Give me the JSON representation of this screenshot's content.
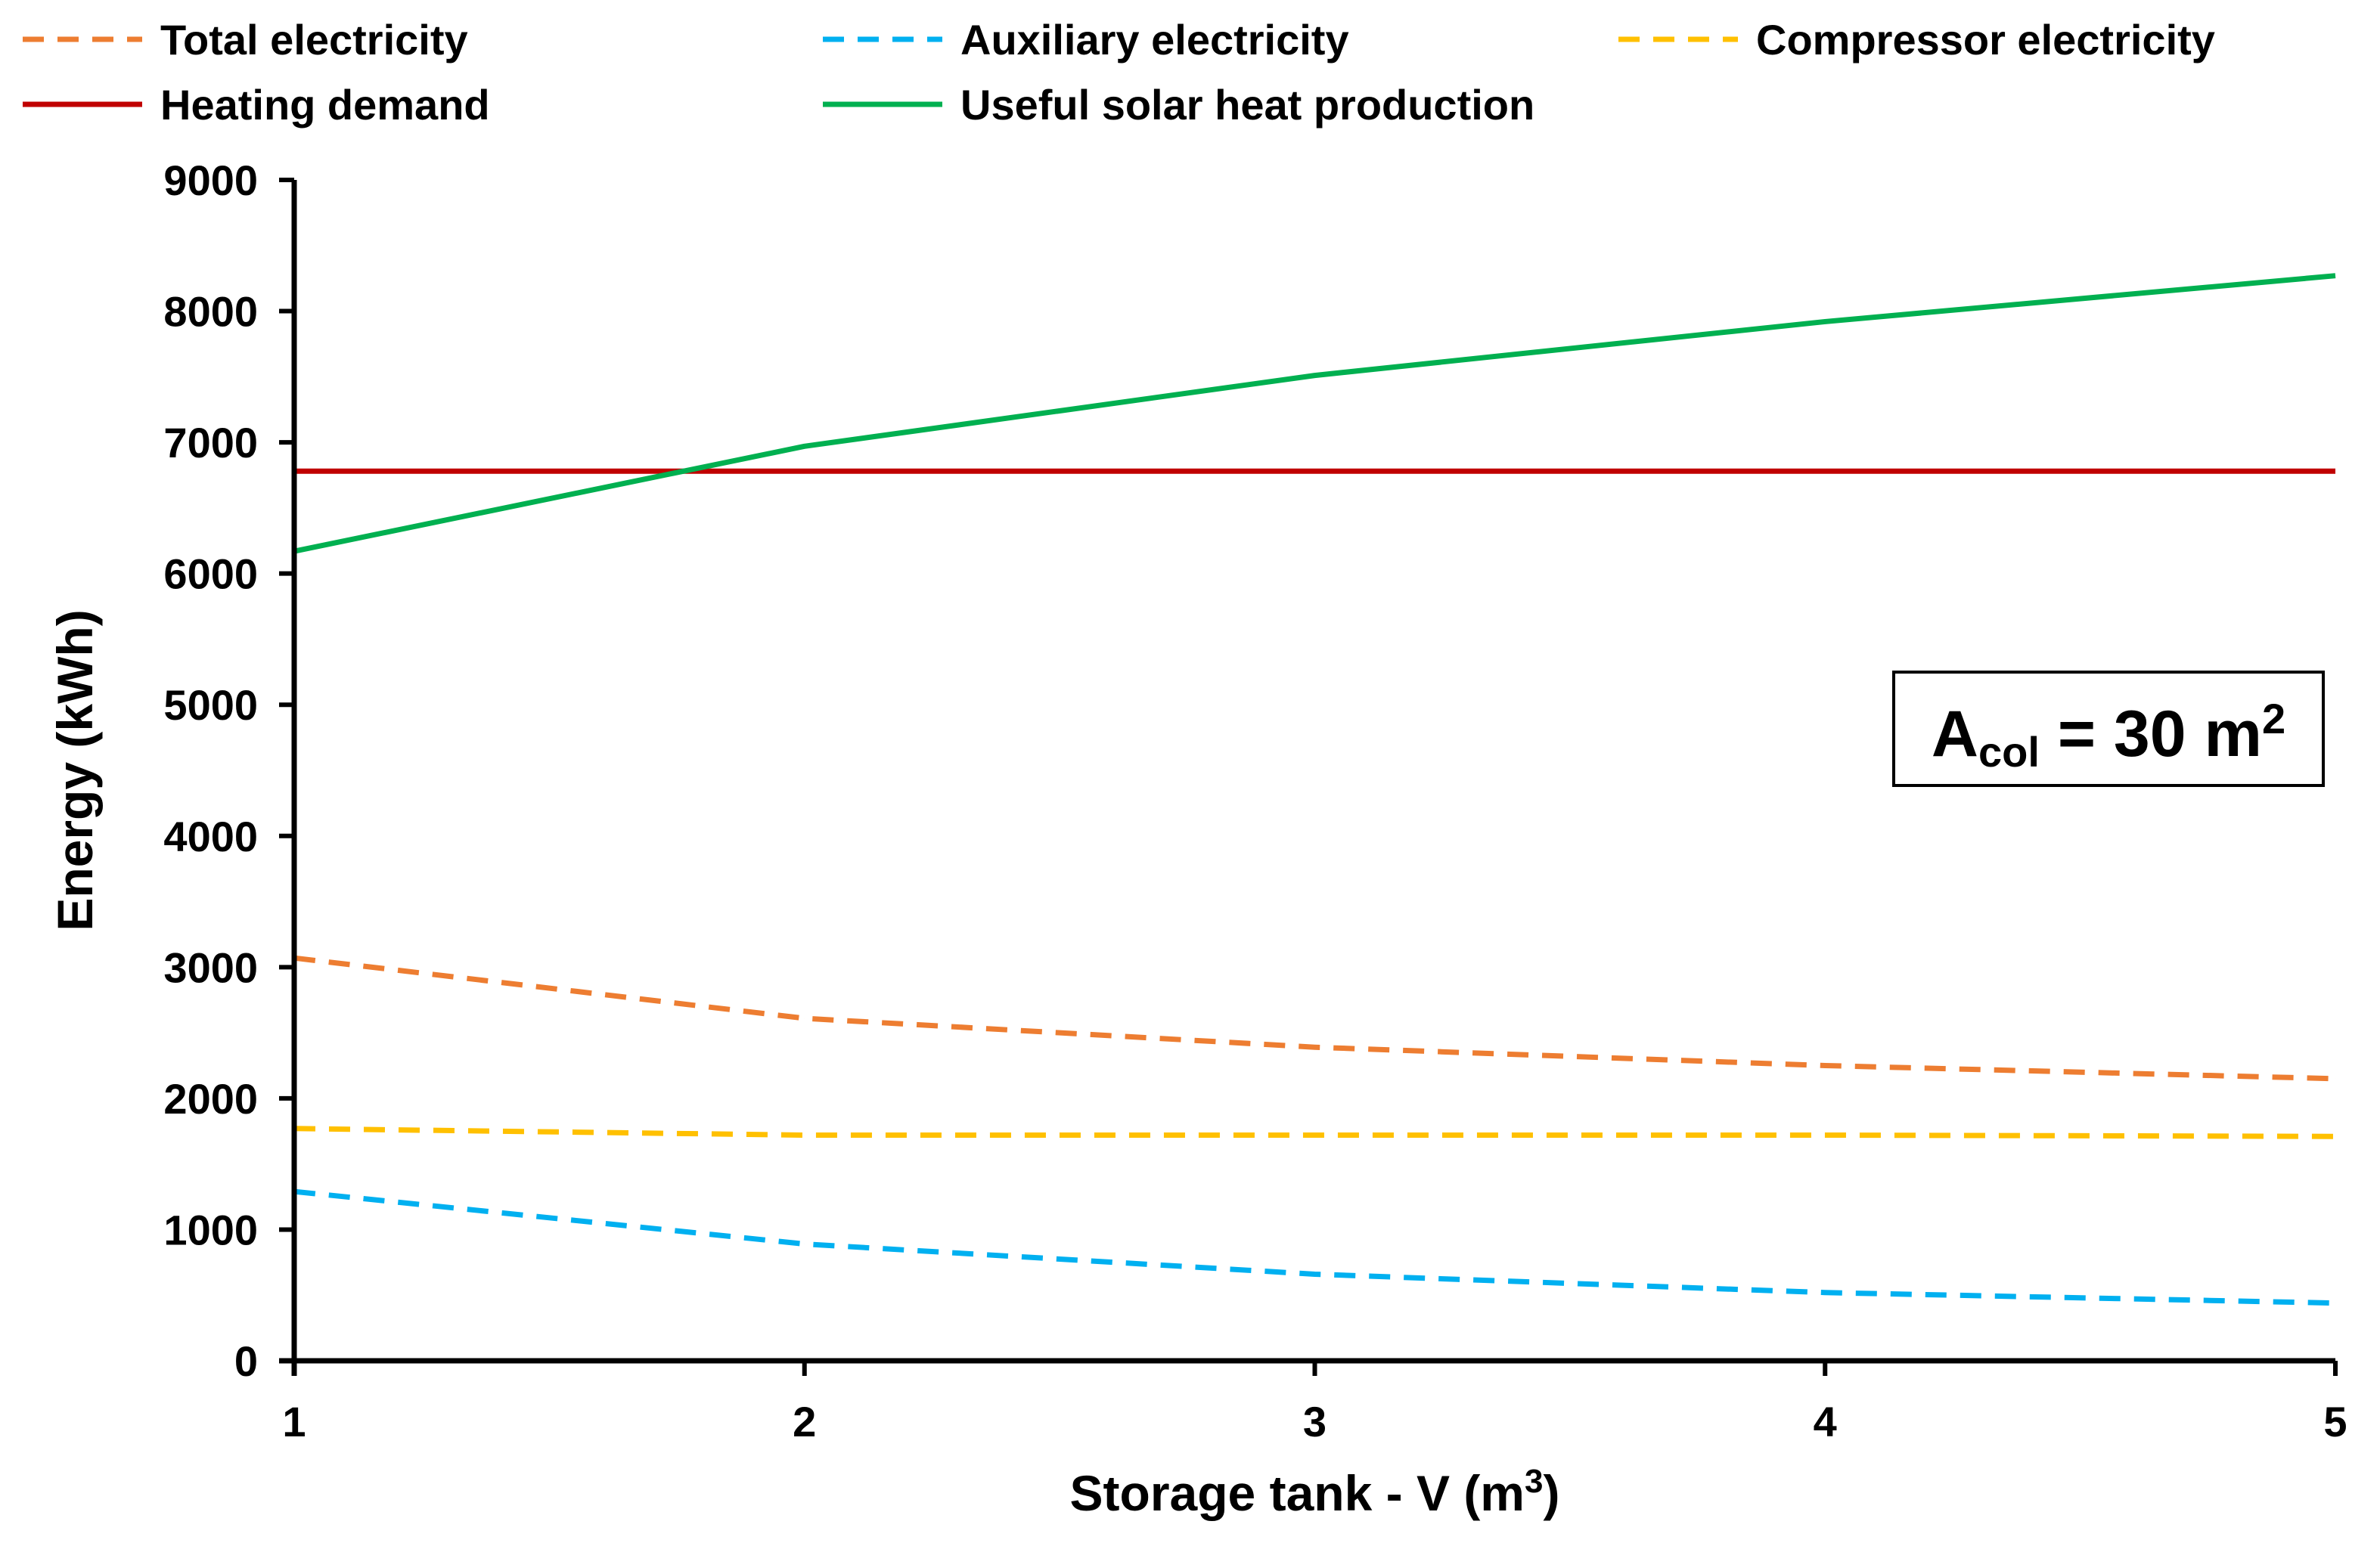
{
  "chart_data": {
    "type": "line",
    "x": [
      1,
      2,
      3,
      4,
      5
    ],
    "xlabel": "Storage tank - V (m³)",
    "ylabel": "Energy (kWh)",
    "xlim": [
      1,
      5
    ],
    "ylim": [
      0,
      9000
    ],
    "x_ticks": [
      "1",
      "2",
      "3",
      "4",
      "5"
    ],
    "y_ticks": [
      "0",
      "1000",
      "2000",
      "3000",
      "4000",
      "5000",
      "6000",
      "7000",
      "8000",
      "9000"
    ],
    "grid": false,
    "legend_position": "top",
    "annotation": {
      "main": "A",
      "sub": "col",
      "rest": " = 30 m",
      "sup": "2"
    },
    "series": [
      {
        "name": "Total electricity",
        "color": "#ED7D31",
        "dash": true,
        "values": [
          3070,
          2610,
          2390,
          2250,
          2150
        ]
      },
      {
        "name": "Auxiliary electricity",
        "color": "#00B0F0",
        "dash": true,
        "values": [
          1290,
          890,
          660,
          520,
          440
        ]
      },
      {
        "name": "Compressor electricity",
        "color": "#FFC000",
        "dash": true,
        "values": [
          1770,
          1720,
          1720,
          1720,
          1710
        ]
      },
      {
        "name": "Heating demand",
        "color": "#C00000",
        "dash": false,
        "values": [
          6780,
          6780,
          6780,
          6780,
          6780
        ]
      },
      {
        "name": "Useful solar heat production",
        "color": "#00B050",
        "dash": false,
        "values": [
          6170,
          6970,
          7510,
          7920,
          8270
        ]
      }
    ]
  }
}
